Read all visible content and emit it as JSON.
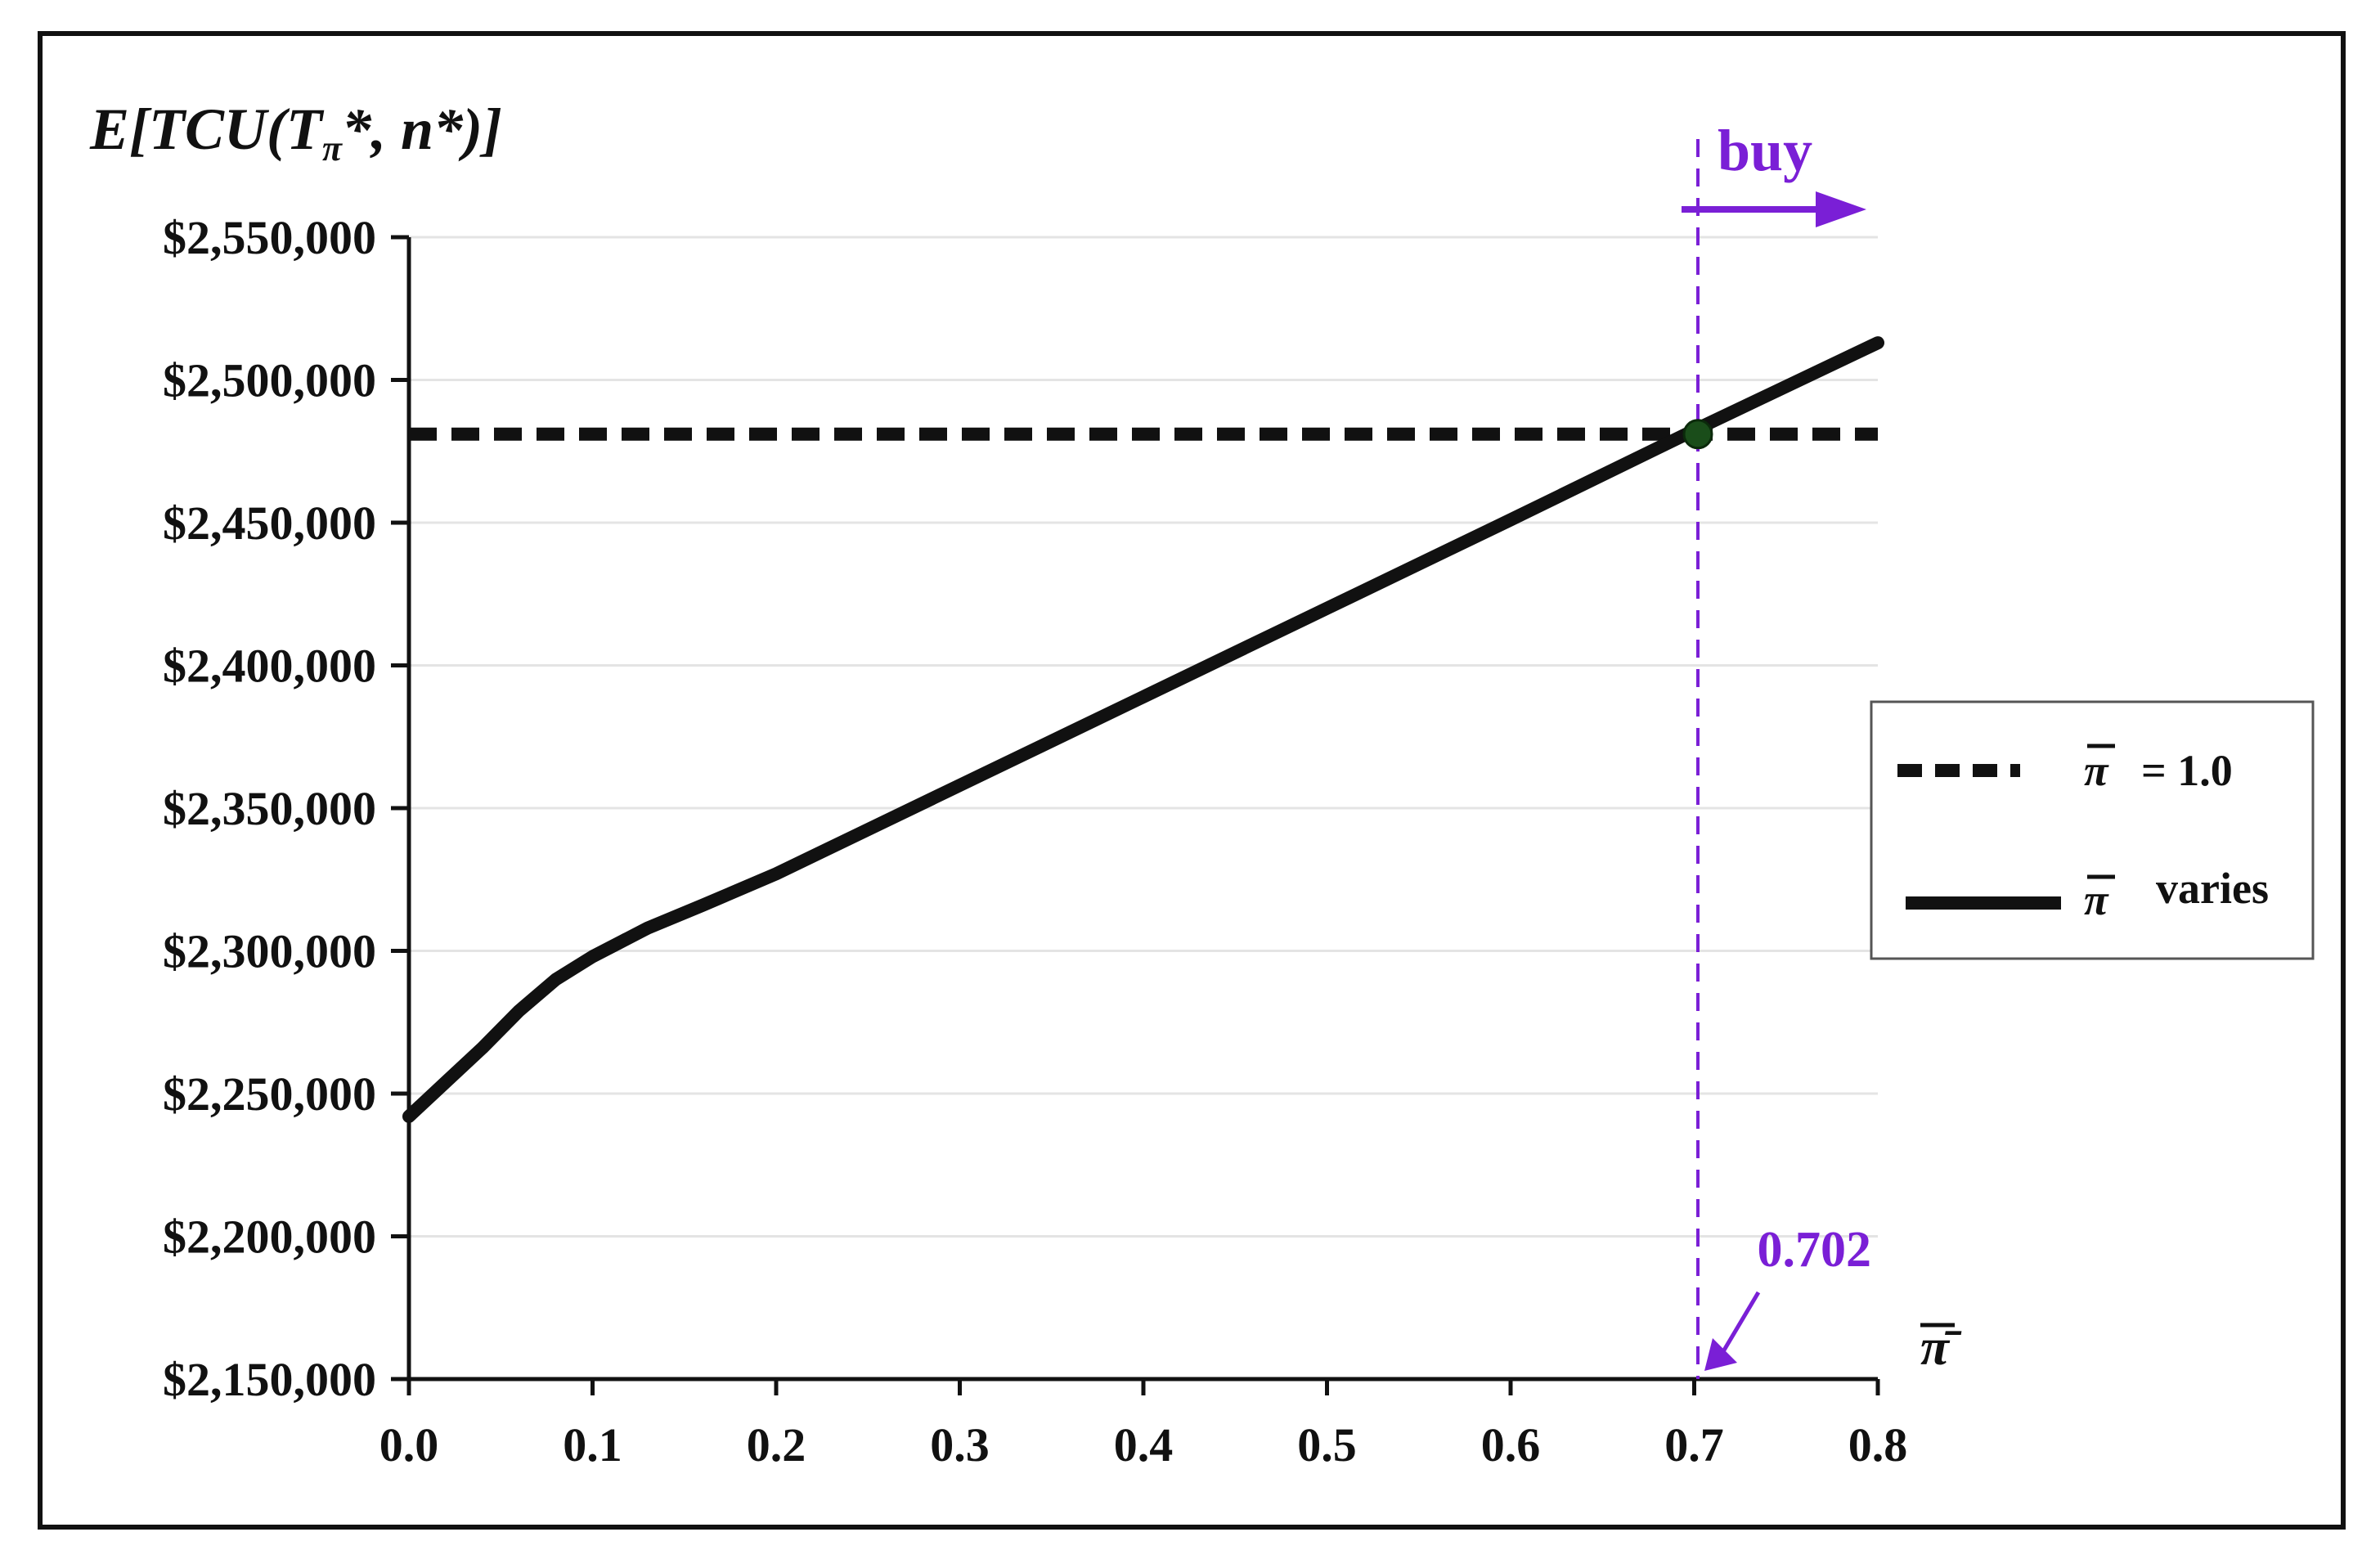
{
  "chart_data": {
    "type": "line",
    "ylabel": "E[TCU(Tπ*, n*)]",
    "xlabel": "π̄",
    "xlim": [
      0.0,
      0.8
    ],
    "ylim": [
      2150000,
      2550000
    ],
    "x_ticks": [
      "0.0",
      "0.1",
      "0.2",
      "0.3",
      "0.4",
      "0.5",
      "0.6",
      "0.7",
      "0.8"
    ],
    "y_ticks": [
      "$2,150,000",
      "$2,200,000",
      "$2,250,000",
      "$2,300,000",
      "$2,350,000",
      "$2,400,000",
      "$2,450,000",
      "$2,500,000",
      "$2,550,000"
    ],
    "x_tick_values": [
      0.0,
      0.1,
      0.2,
      0.3,
      0.4,
      0.5,
      0.6,
      0.7,
      0.8
    ],
    "y_tick_values": [
      2150000,
      2200000,
      2250000,
      2300000,
      2350000,
      2400000,
      2450000,
      2500000,
      2550000
    ],
    "grid": "horizontal",
    "legend_position": "right",
    "series": [
      {
        "name": "= 1.0",
        "style": "dashed",
        "color": "#111111",
        "x": [
          0.0,
          0.8
        ],
        "y": [
          2481000,
          2481000
        ]
      },
      {
        "name": "varies",
        "style": "solid",
        "color": "#111111",
        "x": [
          0.0,
          0.02,
          0.04,
          0.06,
          0.08,
          0.1,
          0.13,
          0.16,
          0.2,
          0.3,
          0.4,
          0.5,
          0.6,
          0.702,
          0.8
        ],
        "y": [
          2242000,
          2254000,
          2266000,
          2279000,
          2290000,
          2298000,
          2308000,
          2316000,
          2327000,
          2358000,
          2389000,
          2420000,
          2451000,
          2483000,
          2513000
        ]
      }
    ],
    "annotations": {
      "threshold_value": 0.702,
      "threshold_label": "0.702",
      "region_label": "buy",
      "color": "#7a1fd6",
      "intersection_color": "#1a4d1a"
    }
  }
}
